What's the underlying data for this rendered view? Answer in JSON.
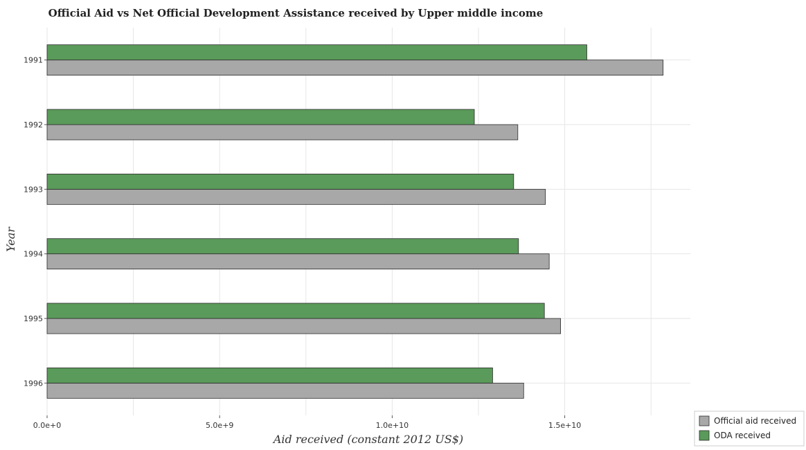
{
  "chart_data": {
    "type": "bar",
    "orientation": "horizontal",
    "title": "Official Aid vs Net Official Development Assistance received by Upper middle income",
    "xlabel": "Aid received (constant 2012 US$)",
    "ylabel": "Year",
    "categories": [
      "1991",
      "1992",
      "1993",
      "1994",
      "1995",
      "1996"
    ],
    "series": [
      {
        "name": "Official aid received",
        "color": "#a8a8a8",
        "values": [
          17850000000,
          13640000000,
          14440000000,
          14550000000,
          14880000000,
          13810000000
        ]
      },
      {
        "name": "ODA received",
        "color": "#5a9a5a",
        "values": [
          15640000000,
          12380000000,
          13520000000,
          13660000000,
          14410000000,
          12910000000
        ]
      }
    ],
    "xlim": [
      0,
      18640000000
    ],
    "xticks": [
      {
        "value": 0,
        "label": "0.0e+0"
      },
      {
        "value": 5000000000,
        "label": "5.0e+9"
      },
      {
        "value": 10000000000,
        "label": "1.0e+10"
      },
      {
        "value": 15000000000,
        "label": "1.5e+10"
      }
    ],
    "grid": true,
    "legend_position": "bottom-right"
  }
}
